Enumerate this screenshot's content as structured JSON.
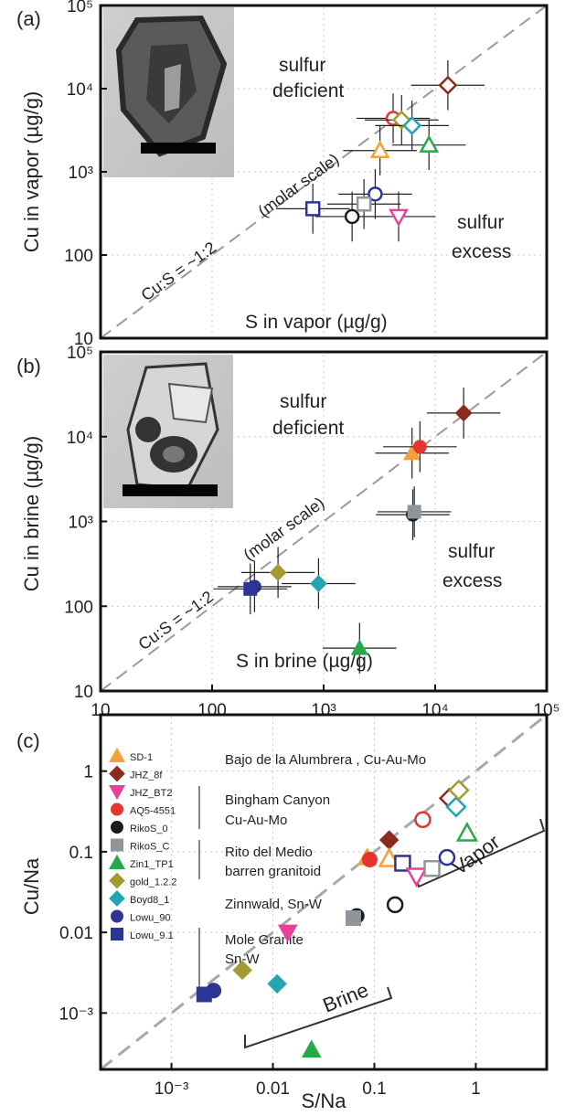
{
  "colors": {
    "orange": "#f4a13a",
    "darkred": "#8b2a1e",
    "magenta": "#e8419a",
    "red": "#e4362f",
    "black": "#1c1c1c",
    "gray": "#8e959b",
    "green": "#27a84a",
    "olive": "#a39a32",
    "teal": "#23a5b1",
    "navy": "#2c3594"
  },
  "chart_data": [
    {
      "panel_label": "(a)",
      "type": "scatter",
      "xscale": "log",
      "yscale": "log",
      "xlim": [
        10,
        100000
      ],
      "ylim": [
        10,
        100000
      ],
      "ylabel": "Cu in vapor (µg/g)",
      "xlabel_inset": "S in vapor  (µg/g)",
      "y_ticks": [
        "10",
        "100",
        "10³",
        "10⁴",
        "10⁵"
      ],
      "annotations": {
        "upper_1": "sulfur",
        "upper_2": "deficient",
        "lower_1": "sulfur",
        "lower_2": "excess",
        "ratio": "Cu:S = ~1:2",
        "molar": "(molar scale)"
      },
      "series": [
        {
          "name": "Lowu_90",
          "x": 2900,
          "y": 540,
          "color_key": "navy",
          "marker": "circle",
          "fill": "open"
        },
        {
          "name": "RikoS_0",
          "x": 1800,
          "y": 290,
          "color_key": "black",
          "marker": "circle",
          "fill": "open"
        },
        {
          "name": "RikoS_C",
          "x": 2300,
          "y": 410,
          "color_key": "gray",
          "marker": "square",
          "fill": "open"
        },
        {
          "name": "Lowu_9.1",
          "x": 800,
          "y": 360,
          "color_key": "navy",
          "marker": "square",
          "fill": "open"
        },
        {
          "name": "JHZ_BT2",
          "x": 4700,
          "y": 290,
          "color_key": "magenta",
          "marker": "triangle-down",
          "fill": "open"
        },
        {
          "name": "SD-1",
          "x": 3200,
          "y": 1800,
          "color_key": "orange",
          "marker": "triangle",
          "fill": "open"
        },
        {
          "name": "Zin1_TP1",
          "x": 8800,
          "y": 2100,
          "color_key": "green",
          "marker": "triangle",
          "fill": "open"
        },
        {
          "name": "AQ5-4551",
          "x": 4200,
          "y": 4400,
          "color_key": "red",
          "marker": "circle",
          "fill": "open"
        },
        {
          "name": "gold_1.2.2",
          "x": 5000,
          "y": 4200,
          "color_key": "olive",
          "marker": "diamond",
          "fill": "open"
        },
        {
          "name": "Boyd8_1",
          "x": 6200,
          "y": 3600,
          "color_key": "teal",
          "marker": "diamond",
          "fill": "open"
        },
        {
          "name": "JHZ_8f",
          "x": 13000,
          "y": 11000,
          "color_key": "darkred",
          "marker": "diamond",
          "fill": "open"
        }
      ]
    },
    {
      "panel_label": "(b)",
      "type": "scatter",
      "xscale": "log",
      "yscale": "log",
      "xlim": [
        10,
        100000
      ],
      "ylim": [
        10,
        100000
      ],
      "ylabel": "Cu in brine (µg/g)",
      "xlabel_inset": "S in brine  (µg/g)",
      "y_ticks": [
        "10",
        "100",
        "10³",
        "10⁴",
        "10⁵"
      ],
      "x_ticks": [
        "10",
        "100",
        "10³",
        "10⁴",
        "10⁵"
      ],
      "annotations": {
        "upper_1": "sulfur",
        "upper_2": "deficient",
        "lower_1": "sulfur",
        "lower_2": "excess",
        "ratio": "Cu:S = ~1:2",
        "molar": "(molar scale)"
      },
      "series": [
        {
          "name": "Lowu_90",
          "x": 240,
          "y": 170,
          "color_key": "navy",
          "marker": "circle",
          "fill": "solid"
        },
        {
          "name": "Lowu_9.1",
          "x": 220,
          "y": 160,
          "color_key": "navy",
          "marker": "square",
          "fill": "solid"
        },
        {
          "name": "gold_1.2.2",
          "x": 390,
          "y": 250,
          "color_key": "olive",
          "marker": "diamond",
          "fill": "solid"
        },
        {
          "name": "Boyd8_1",
          "x": 900,
          "y": 185,
          "color_key": "teal",
          "marker": "diamond",
          "fill": "solid"
        },
        {
          "name": "Zin1_TP1",
          "x": 2100,
          "y": 32,
          "color_key": "green",
          "marker": "triangle",
          "fill": "solid"
        },
        {
          "name": "RikoS_0",
          "x": 6300,
          "y": 1200,
          "color_key": "black",
          "marker": "circle",
          "fill": "solid"
        },
        {
          "name": "RikoS_C",
          "x": 6500,
          "y": 1300,
          "color_key": "gray",
          "marker": "square",
          "fill": "solid"
        },
        {
          "name": "SD-1",
          "x": 6200,
          "y": 6400,
          "color_key": "orange",
          "marker": "triangle",
          "fill": "solid"
        },
        {
          "name": "AQ5-4551",
          "x": 7300,
          "y": 7600,
          "color_key": "red",
          "marker": "circle",
          "fill": "solid"
        },
        {
          "name": "JHZ_8f",
          "x": 18000,
          "y": 19000,
          "color_key": "darkred",
          "marker": "diamond",
          "fill": "solid"
        }
      ]
    },
    {
      "panel_label": "(c)",
      "type": "scatter",
      "xscale": "log",
      "yscale": "log",
      "xlim": [
        0.0002,
        5
      ],
      "ylim": [
        0.0002,
        5
      ],
      "xlabel": "S/Na",
      "ylabel": "Cu/Na",
      "x_ticks": [
        "10⁻³",
        "0.01",
        "0.1",
        "1"
      ],
      "y_ticks": [
        "10⁻³",
        "0.01",
        "0.1",
        "1"
      ],
      "bracket_labels": {
        "brine": "Brine",
        "vapor": "Vapor"
      },
      "legend": {
        "entries": [
          {
            "name": "SD-1",
            "color_key": "orange",
            "marker": "triangle"
          },
          {
            "name": "JHZ_8f",
            "color_key": "darkred",
            "marker": "diamond"
          },
          {
            "name": "JHZ_BT2",
            "color_key": "magenta",
            "marker": "triangle-down"
          },
          {
            "name": "AQ5-4551",
            "color_key": "red",
            "marker": "circle"
          },
          {
            "name": "RikoS_0",
            "color_key": "black",
            "marker": "circle"
          },
          {
            "name": "RikoS_C",
            "color_key": "gray",
            "marker": "square"
          },
          {
            "name": "Zin1_TP1",
            "color_key": "green",
            "marker": "triangle"
          },
          {
            "name": "gold_1.2.2",
            "color_key": "olive",
            "marker": "diamond"
          },
          {
            "name": "Boyd8_1",
            "color_key": "teal",
            "marker": "diamond"
          },
          {
            "name": "Lowu_90",
            "color_key": "navy",
            "marker": "circle"
          },
          {
            "name": "Lowu_9.1",
            "color_key": "navy",
            "marker": "square"
          }
        ],
        "groups": [
          {
            "lines": [
              "Bajo de la Alumbrera , Cu-Au-Mo"
            ]
          },
          {
            "lines": [
              "Bingham Canyon",
              "Cu-Au-Mo"
            ]
          },
          {
            "lines": [
              "Rito del Medio",
              "barren granitoid"
            ]
          },
          {
            "lines": [
              "Zinnwald, Sn-W"
            ]
          },
          {
            "lines": [
              "Mole Granite",
              "Sn-W"
            ]
          }
        ]
      },
      "series": [
        {
          "name": "SD-1",
          "x": 0.085,
          "y": 0.085,
          "color_key": "orange",
          "marker": "triangle",
          "fill": "solid"
        },
        {
          "name": "AQ5-4551",
          "x": 0.09,
          "y": 0.08,
          "color_key": "red",
          "marker": "circle",
          "fill": "solid"
        },
        {
          "name": "JHZ_8f",
          "x": 0.14,
          "y": 0.14,
          "color_key": "darkred",
          "marker": "diamond",
          "fill": "solid"
        },
        {
          "name": "JHZ_BT2",
          "x": 0.014,
          "y": 0.01,
          "color_key": "magenta",
          "marker": "triangle-down",
          "fill": "solid"
        },
        {
          "name": "RikoS_0",
          "x": 0.067,
          "y": 0.016,
          "color_key": "black",
          "marker": "circle",
          "fill": "solid"
        },
        {
          "name": "RikoS_C",
          "x": 0.062,
          "y": 0.015,
          "color_key": "gray",
          "marker": "square",
          "fill": "solid"
        },
        {
          "name": "Zin1_TP1",
          "x": 0.024,
          "y": 0.00035,
          "color_key": "green",
          "marker": "triangle",
          "fill": "solid"
        },
        {
          "name": "gold_1.2.2",
          "x": 0.005,
          "y": 0.0034,
          "color_key": "olive",
          "marker": "diamond",
          "fill": "solid"
        },
        {
          "name": "Boyd8_1",
          "x": 0.011,
          "y": 0.0023,
          "color_key": "teal",
          "marker": "diamond",
          "fill": "solid"
        },
        {
          "name": "Lowu_90",
          "x": 0.0026,
          "y": 0.0019,
          "color_key": "navy",
          "marker": "circle",
          "fill": "solid"
        },
        {
          "name": "Lowu_9.1",
          "x": 0.0021,
          "y": 0.0017,
          "color_key": "navy",
          "marker": "square",
          "fill": "solid"
        },
        {
          "name": "SD-1",
          "x": 0.14,
          "y": 0.082,
          "color_key": "orange",
          "marker": "triangle",
          "fill": "open"
        },
        {
          "name": "RikoS_0",
          "x": 0.16,
          "y": 0.022,
          "color_key": "black",
          "marker": "circle",
          "fill": "open"
        },
        {
          "name": "Lowu_9.1",
          "x": 0.19,
          "y": 0.072,
          "color_key": "navy",
          "marker": "square",
          "fill": "open"
        },
        {
          "name": "JHZ_BT2",
          "x": 0.26,
          "y": 0.05,
          "color_key": "magenta",
          "marker": "triangle-down",
          "fill": "open"
        },
        {
          "name": "AQ5-4551",
          "x": 0.3,
          "y": 0.25,
          "color_key": "red",
          "marker": "circle",
          "fill": "open"
        },
        {
          "name": "RikoS_C",
          "x": 0.37,
          "y": 0.062,
          "color_key": "gray",
          "marker": "square",
          "fill": "open"
        },
        {
          "name": "Lowu_90",
          "x": 0.52,
          "y": 0.085,
          "color_key": "navy",
          "marker": "circle",
          "fill": "open"
        },
        {
          "name": "JHZ_8f",
          "x": 0.55,
          "y": 0.46,
          "color_key": "darkred",
          "marker": "diamond",
          "fill": "open"
        },
        {
          "name": "Boyd8_1",
          "x": 0.64,
          "y": 0.36,
          "color_key": "teal",
          "marker": "diamond",
          "fill": "open"
        },
        {
          "name": "gold_1.2.2",
          "x": 0.68,
          "y": 0.58,
          "color_key": "olive",
          "marker": "diamond",
          "fill": "open"
        },
        {
          "name": "Zin1_TP1",
          "x": 0.82,
          "y": 0.17,
          "color_key": "green",
          "marker": "triangle",
          "fill": "open"
        }
      ]
    }
  ]
}
